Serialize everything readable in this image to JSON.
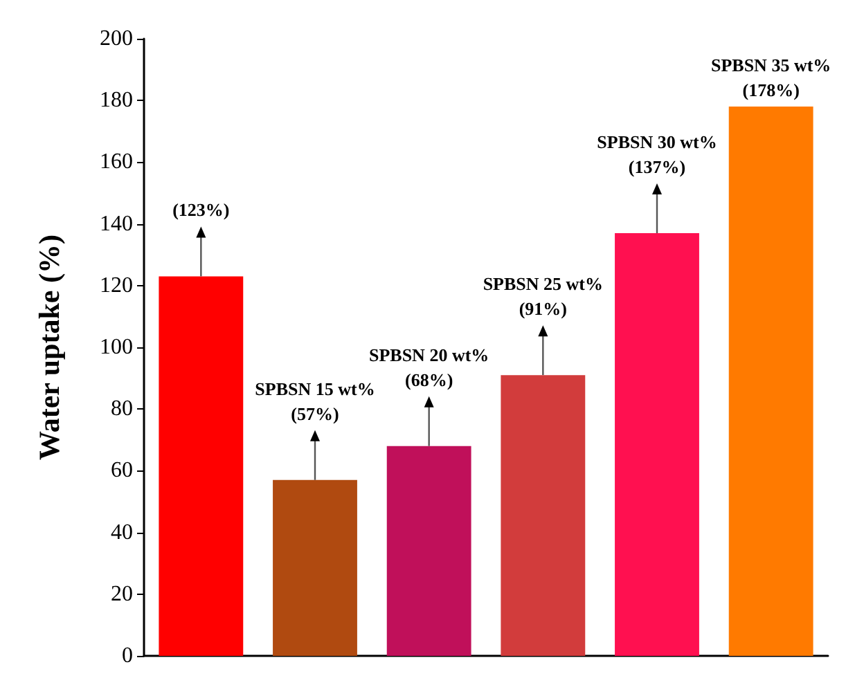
{
  "chart_data": {
    "type": "bar",
    "ylabel": "Water uptake (%)",
    "categories": [
      null,
      null,
      null,
      null,
      null,
      null
    ],
    "values": [
      123,
      57,
      68,
      91,
      137,
      178
    ],
    "colors": [
      "#ff0000",
      "#b04a10",
      "#c0105a",
      "#d23c3c",
      "#ff1050",
      "#ff7a00"
    ],
    "value_labels": [
      "(123%)",
      "SPBSN 15 wt%\n(57%)",
      "SPBSN 20 wt%\n(68%)",
      "SPBSN 25 wt%\n(91%)",
      "SPBSN 30 wt%\n(137%)",
      "SPBSN 35 wt%\n(178%)"
    ],
    "ylim": [
      0,
      200
    ],
    "yticks": [
      0,
      20,
      40,
      60,
      80,
      100,
      120,
      140,
      160,
      180,
      200
    ],
    "grid": false
  }
}
